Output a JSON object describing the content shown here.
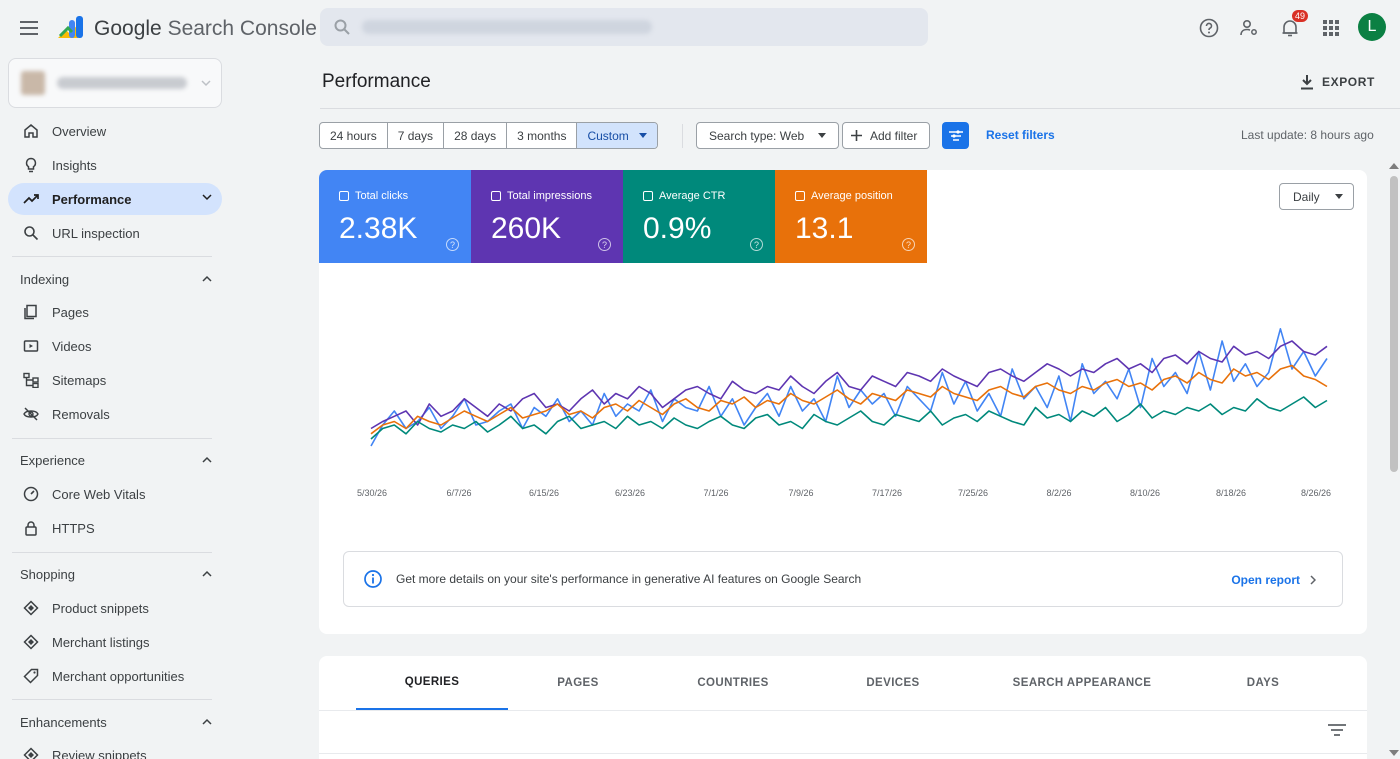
{
  "app": {
    "title_google": "Google",
    "title_product": "Search Console",
    "notifications_count": "49",
    "avatar_letter": "L"
  },
  "sidebar": {
    "items_top": [
      {
        "label": "Overview",
        "icon": "home-icon"
      },
      {
        "label": "Insights",
        "icon": "lightbulb-icon"
      },
      {
        "label": "Performance",
        "icon": "trending-up-icon",
        "active": true
      },
      {
        "label": "URL inspection",
        "icon": "search-icon"
      }
    ],
    "indexing": {
      "title": "Indexing",
      "items": [
        {
          "label": "Pages",
          "icon": "pages-icon"
        },
        {
          "label": "Videos",
          "icon": "video-icon"
        },
        {
          "label": "Sitemaps",
          "icon": "sitemap-icon"
        },
        {
          "label": "Removals",
          "icon": "eye-off-icon"
        }
      ]
    },
    "experience": {
      "title": "Experience",
      "items": [
        {
          "label": "Core Web Vitals",
          "icon": "gauge-icon"
        },
        {
          "label": "HTTPS",
          "icon": "lock-icon"
        }
      ]
    },
    "shopping": {
      "title": "Shopping",
      "items": [
        {
          "label": "Product snippets",
          "icon": "diamond-icon"
        },
        {
          "label": "Merchant listings",
          "icon": "diamond-icon"
        },
        {
          "label": "Merchant opportunities",
          "icon": "tag-icon"
        }
      ]
    },
    "enhancements": {
      "title": "Enhancements",
      "items": [
        {
          "label": "Review snippets",
          "icon": "diamond-icon"
        }
      ]
    }
  },
  "main": {
    "page_title": "Performance",
    "export_label": "EXPORT",
    "date_ranges": [
      "24 hours",
      "7 days",
      "28 days",
      "3 months",
      "Custom"
    ],
    "selected_range": "Custom",
    "search_type": "Search type: Web",
    "add_filter": "Add filter",
    "reset_filters": "Reset filters",
    "last_update": "Last update: 8 hours ago"
  },
  "metrics": [
    {
      "label": "Total clicks",
      "value": "2.38K",
      "color": "#4285f4"
    },
    {
      "label": "Total impressions",
      "value": "260K",
      "color": "#5e35b1"
    },
    {
      "label": "Average CTR",
      "value": "0.9%",
      "color": "#00897b"
    },
    {
      "label": "Average position",
      "value": "13.1",
      "color": "#e8710a"
    }
  ],
  "granularity": "Daily",
  "chart_data": {
    "type": "line",
    "x_ticks": [
      "5/30/26",
      "6/7/26",
      "6/15/26",
      "6/23/26",
      "7/1/26",
      "7/9/26",
      "7/17/26",
      "7/25/26",
      "8/2/26",
      "8/10/26",
      "8/18/26",
      "8/26/26"
    ],
    "series": [
      {
        "name": "Total clicks",
        "color": "#4285f4",
        "values": [
          28,
          40,
          48,
          38,
          42,
          50,
          38,
          45,
          55,
          40,
          42,
          48,
          52,
          38,
          50,
          45,
          55,
          42,
          48,
          40,
          58,
          45,
          52,
          48,
          60,
          42,
          55,
          50,
          48,
          62,
          45,
          55,
          40,
          50,
          58,
          45,
          62,
          48,
          55,
          42,
          68,
          50,
          60,
          52,
          58,
          45,
          62,
          55,
          48,
          70,
          52,
          65,
          48,
          58,
          45,
          72,
          55,
          62,
          50,
          68,
          42,
          75,
          58,
          65,
          55,
          72,
          50,
          78,
          62,
          70,
          58,
          82,
          60,
          88,
          65,
          75,
          62,
          70,
          95,
          72,
          82,
          68,
          78
        ]
      },
      {
        "name": "Total impressions",
        "color": "#5e35b1",
        "values": [
          38,
          42,
          45,
          48,
          40,
          52,
          45,
          48,
          55,
          50,
          45,
          52,
          48,
          55,
          58,
          50,
          52,
          48,
          55,
          60,
          52,
          58,
          55,
          62,
          58,
          50,
          55,
          60,
          62,
          58,
          55,
          65,
          60,
          58,
          62,
          60,
          68,
          62,
          58,
          65,
          70,
          62,
          60,
          68,
          65,
          62,
          70,
          68,
          65,
          72,
          68,
          65,
          62,
          70,
          72,
          68,
          65,
          70,
          75,
          72,
          68,
          72,
          70,
          75,
          78,
          72,
          75,
          70,
          78,
          80,
          75,
          82,
          78,
          76,
          85,
          80,
          82,
          78,
          85,
          88,
          82,
          80,
          85
        ]
      },
      {
        "name": "Average CTR",
        "color": "#00897b",
        "values": [
          32,
          38,
          40,
          35,
          42,
          38,
          36,
          40,
          38,
          42,
          36,
          40,
          45,
          38,
          40,
          35,
          42,
          45,
          38,
          40,
          42,
          38,
          45,
          40,
          42,
          38,
          44,
          40,
          38,
          42,
          45,
          40,
          38,
          44,
          46,
          40,
          42,
          38,
          46,
          42,
          40,
          44,
          48,
          42,
          40,
          46,
          44,
          42,
          48,
          40,
          44,
          46,
          42,
          48,
          45,
          42,
          40,
          50,
          44,
          46,
          42,
          48,
          45,
          50,
          42,
          46,
          52,
          44,
          48,
          46,
          50,
          48,
          52,
          46,
          50,
          48,
          55,
          50,
          48,
          52,
          56,
          50,
          54
        ]
      },
      {
        "name": "Average position",
        "color": "#e8710a",
        "values": [
          35,
          40,
          42,
          38,
          45,
          42,
          40,
          44,
          48,
          45,
          42,
          46,
          50,
          44,
          46,
          48,
          52,
          46,
          48,
          44,
          50,
          52,
          48,
          54,
          50,
          46,
          52,
          55,
          50,
          48,
          54,
          52,
          56,
          50,
          54,
          52,
          58,
          54,
          52,
          56,
          60,
          55,
          52,
          58,
          56,
          54,
          60,
          58,
          56,
          62,
          58,
          56,
          54,
          60,
          62,
          58,
          56,
          62,
          64,
          60,
          58,
          62,
          60,
          64,
          66,
          62,
          64,
          60,
          66,
          68,
          64,
          70,
          66,
          64,
          72,
          68,
          70,
          66,
          72,
          74,
          68,
          66,
          62
        ]
      }
    ]
  },
  "info_banner": {
    "text": "Get more details on your site's performance in generative AI features on Google Search",
    "link": "Open report"
  },
  "tabs": [
    "QUERIES",
    "PAGES",
    "COUNTRIES",
    "DEVICES",
    "SEARCH APPEARANCE",
    "DAYS"
  ]
}
